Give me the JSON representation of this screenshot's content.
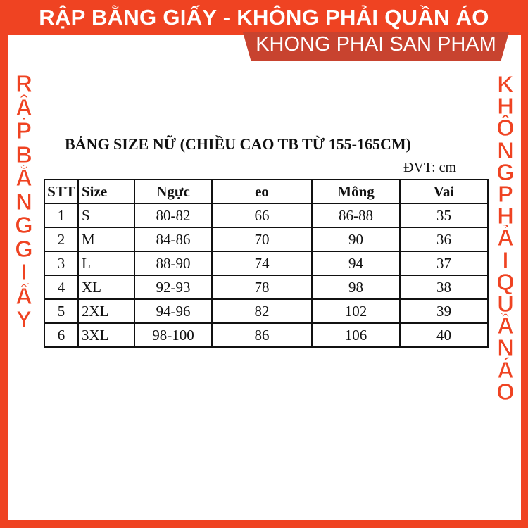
{
  "banner": {
    "title": "RẬP BẰNG GIẤY - KHÔNG PHẢI QUẦN ÁO",
    "subtitle": "KHONG PHAI SAN PHAM"
  },
  "side_left": [
    "R",
    "Ậ",
    "P",
    " ",
    "B",
    "Ằ",
    "N",
    "G",
    " ",
    "G",
    "I",
    "Ấ",
    "Y"
  ],
  "side_right": [
    "K",
    "H",
    "Ô",
    "N",
    "G",
    " ",
    "P",
    "H",
    "Ả",
    "I",
    " ",
    "Q",
    "U",
    "Ầ",
    "N",
    " ",
    "Á",
    "O"
  ],
  "size_table": {
    "title": "BẢNG SIZE NỮ (CHIỀU CAO TB TỪ 155-165CM)",
    "unit": "ĐVT: cm",
    "headers": [
      "STT",
      "Size",
      "Ngực",
      "eo",
      "Mông",
      "Vai"
    ],
    "rows": [
      [
        "1",
        "S",
        "80-82",
        "66",
        "86-88",
        "35"
      ],
      [
        "2",
        "M",
        "84-86",
        "70",
        "90",
        "36"
      ],
      [
        "3",
        "L",
        "88-90",
        "74",
        "94",
        "37"
      ],
      [
        "4",
        "XL",
        "92-93",
        "78",
        "98",
        "38"
      ],
      [
        "5",
        "2XL",
        "94-96",
        "82",
        "102",
        "39"
      ],
      [
        "6",
        "3XL",
        "98-100",
        "86",
        "106",
        "40"
      ]
    ]
  },
  "colors": {
    "brand_red": "#ef4322",
    "sub_banner": "#c8432f"
  }
}
